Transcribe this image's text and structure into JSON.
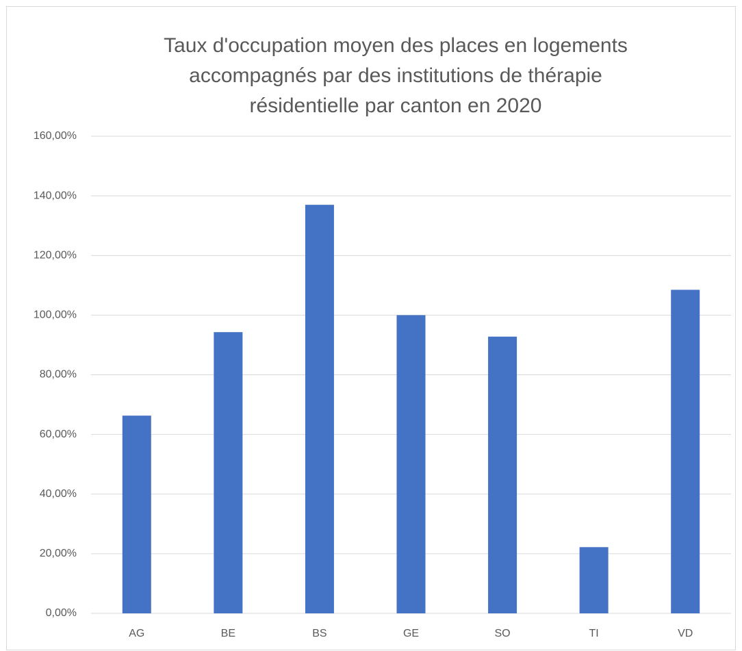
{
  "chart_data": {
    "type": "bar",
    "title": [
      "Taux d'occupation moyen des places en logements",
      "accompagnés par des institutions de thérapie",
      "résidentielle par canton en 2020"
    ],
    "categories": [
      "AG",
      "BE",
      "BS",
      "GE",
      "SO",
      "TI",
      "VD"
    ],
    "values": [
      66.3,
      94.3,
      137.0,
      100.0,
      92.8,
      22.2,
      108.5
    ],
    "color": "#4472c4",
    "ylim": [
      0,
      160
    ],
    "yticks": [
      {
        "value": 0,
        "label": "0,00%"
      },
      {
        "value": 20,
        "label": "20,00%"
      },
      {
        "value": 40,
        "label": "40,00%"
      },
      {
        "value": 60,
        "label": "60,00%"
      },
      {
        "value": 80,
        "label": "80,00%"
      },
      {
        "value": 100,
        "label": "100,00%"
      },
      {
        "value": 120,
        "label": "120,00%"
      },
      {
        "value": 140,
        "label": "140,00%"
      },
      {
        "value": 160,
        "label": "160,00%"
      }
    ],
    "grid": true
  }
}
